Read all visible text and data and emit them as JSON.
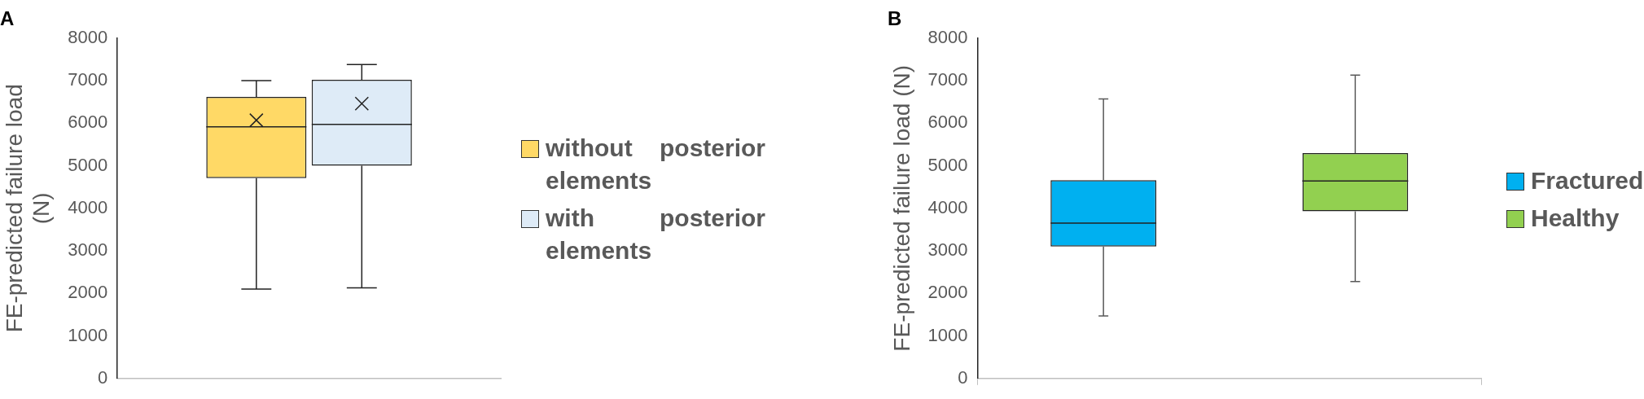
{
  "chart_data": [
    {
      "type": "box",
      "title": "A",
      "ylabel": "FE-predicted failure load (N)",
      "categories": [
        null
      ],
      "ylim": [
        0,
        8000
      ],
      "yticks": [
        0,
        1000,
        2000,
        3000,
        4000,
        5000,
        6000,
        7000,
        8000
      ],
      "tick_labels": "y",
      "legend": "right",
      "marker": "cross",
      "series": [
        {
          "name": "without posterior elements",
          "color": "#ffd966",
          "boxes": [
            {
              "low": 2100,
              "q1": 4710,
              "median": 5915,
              "q3": 6620,
              "high": 7000,
              "mean": 6070
            }
          ]
        },
        {
          "name": "with posterior elements",
          "color": "#deebf7",
          "boxes": [
            {
              "low": 2130,
              "q1": 5000,
              "median": 5970,
              "q3": 7020,
              "high": 7380,
              "mean": 6460
            }
          ]
        }
      ]
    },
    {
      "type": "box",
      "title": "B",
      "ylabel": "FE-predicted failure load (N)",
      "categories": [
        null
      ],
      "ylim": [
        0,
        8000
      ],
      "yticks": [
        0,
        1000,
        2000,
        3000,
        4000,
        5000,
        6000,
        7000,
        8000
      ],
      "tick_labels": "y",
      "legend": "right",
      "series": [
        {
          "name": "Fractured",
          "color": "#00b0f0",
          "boxes": [
            {
              "low": 1470,
              "q1": 3100,
              "median": 3650,
              "q3": 4660,
              "high": 6570
            }
          ]
        },
        {
          "name": "Healthy",
          "color": "#92d050",
          "boxes": [
            {
              "low": 2280,
              "q1": 3930,
              "median": 4640,
              "q3": 5300,
              "high": 7130
            }
          ]
        }
      ]
    }
  ]
}
